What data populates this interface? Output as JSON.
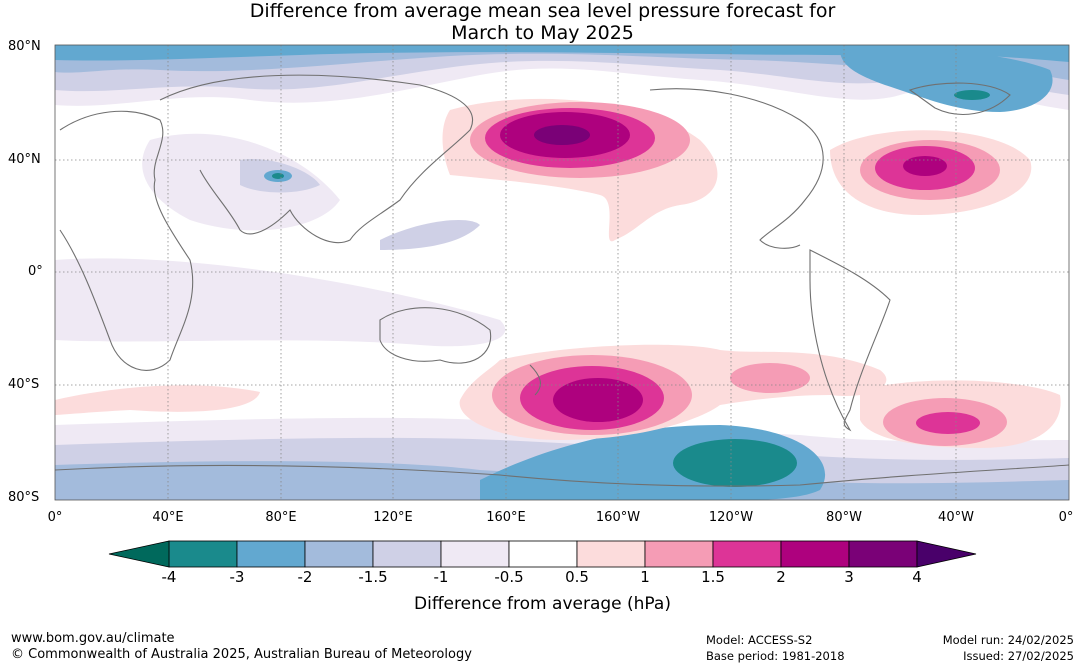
{
  "title_line1": "Difference from average mean sea level pressure forecast for",
  "title_line2": "March to May 2025",
  "lat_labels": {
    "n80": "80°N",
    "n40": "40°N",
    "eq": "0°",
    "s40": "40°S",
    "s80": "80°S"
  },
  "lon_labels": {
    "l0": "0°",
    "e40": "40°E",
    "e80": "80°E",
    "e120": "120°E",
    "e160": "160°E",
    "w160": "160°W",
    "w120": "120°W",
    "w80": "80°W",
    "w40": "40°W",
    "r0": "0°"
  },
  "colorbar": {
    "title": "Difference from average (hPa)",
    "ticks": [
      "-4",
      "-3",
      "-2",
      "-1.5",
      "-1",
      "-0.5",
      "0.5",
      "1",
      "1.5",
      "2",
      "3",
      "4"
    ],
    "colors": [
      "#1a8a8c",
      "#62a8d0",
      "#a3bbdc",
      "#cfd0e6",
      "#efe9f4",
      "#ffffff",
      "#fcdcdc",
      "#f59cb5",
      "#dd3497",
      "#ae017e",
      "#7a0177"
    ],
    "under_color": "#00695c",
    "over_color": "#49006a"
  },
  "footer": {
    "url": "www.bom.gov.au/climate",
    "copyright": "© Commonwealth of Australia 2025, Australian Bureau of Meteorology",
    "model": "Model: ACCESS-S2",
    "base_period": "Base period: 1981-2018",
    "model_run": "Model run: 24/02/2025",
    "issued": "Issued: 27/02/2025"
  }
}
